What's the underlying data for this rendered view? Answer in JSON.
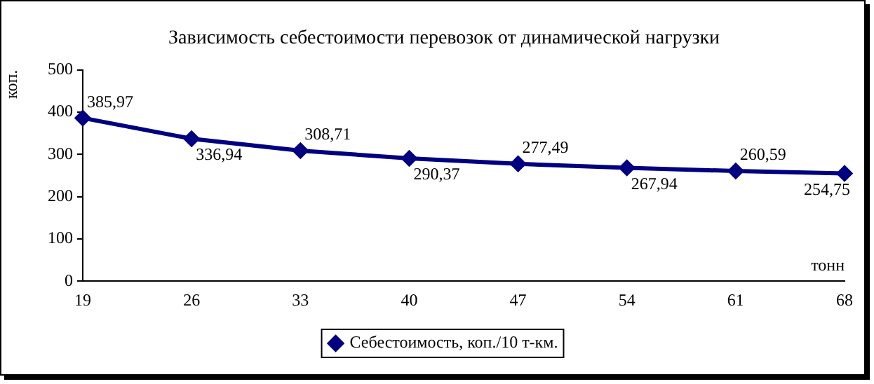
{
  "chart_data": {
    "type": "line",
    "title": "Зависимость себестоимости перевозок от динамической нагрузки",
    "xlabel": "тонн",
    "ylabel": "коп.",
    "categories": [
      "19",
      "26",
      "33",
      "40",
      "47",
      "54",
      "61",
      "68"
    ],
    "series": [
      {
        "name": "Себестоимость, коп./10 т-км.",
        "color": "#000080",
        "values": [
          385.97,
          336.94,
          308.71,
          290.37,
          277.49,
          267.94,
          260.59,
          254.75
        ],
        "value_labels": [
          "385,97",
          "336,94",
          "308,71",
          "290,37",
          "277,49",
          "267,94",
          "260,59",
          "254,75"
        ]
      }
    ],
    "ylim": [
      0,
      500
    ],
    "yticks": [
      0,
      100,
      200,
      300,
      400,
      500
    ],
    "grid": false,
    "legend": "bottom",
    "marker": "diamond",
    "line_style": "solid"
  }
}
